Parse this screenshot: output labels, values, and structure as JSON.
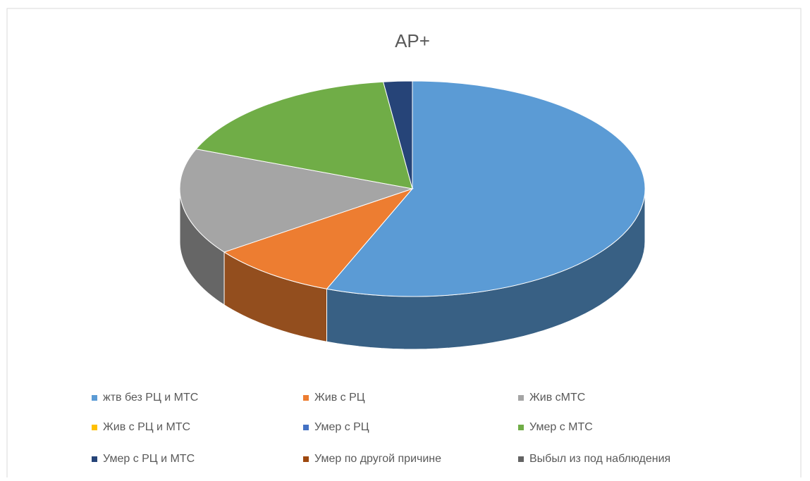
{
  "chart_data": {
    "type": "pie3d",
    "title": "AP+",
    "categories": [
      "жтв без РЦ и МТС",
      "Жив с РЦ",
      "Жив сМТС",
      "Жив с РЦ и МТС",
      "Умер с РЦ",
      "Умер с МТС",
      "Умер с РЦ и МТС",
      "Умер по другой причине",
      "Выбыл из под наблюдения"
    ],
    "values": [
      56,
      9,
      16,
      0,
      0,
      17,
      2,
      0,
      0
    ],
    "colors": [
      "#5b9bd5",
      "#ed7d31",
      "#a5a5a5",
      "#ffc000",
      "#4472c4",
      "#70ad47",
      "#264478",
      "#9e480e",
      "#636363"
    ],
    "legend": "bottom"
  }
}
